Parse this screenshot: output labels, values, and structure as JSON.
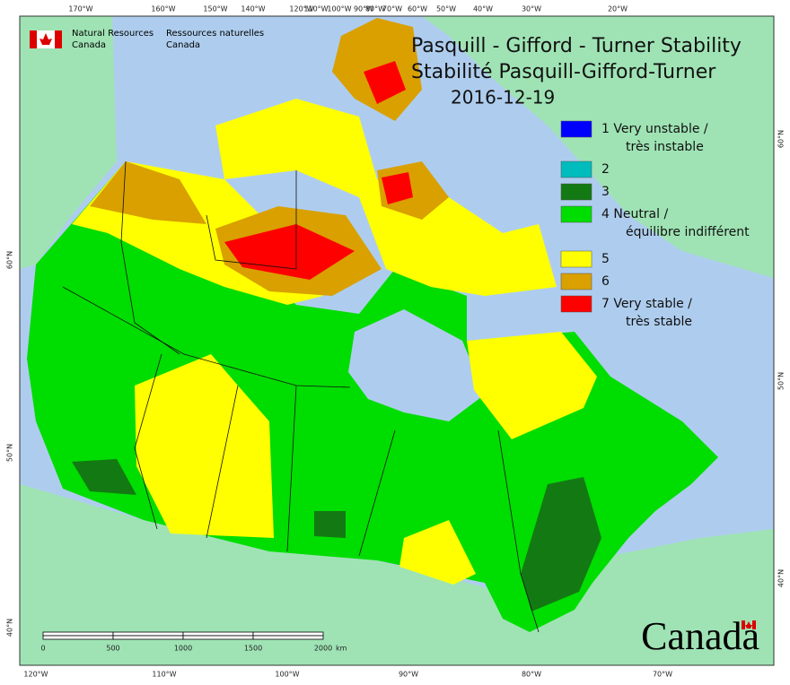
{
  "header": {
    "agency_en": [
      "Natural Resources",
      "Canada"
    ],
    "agency_fr": [
      "Ressources naturelles",
      "Canada"
    ],
    "title": "Pasquill - Gifford - Turner Stability",
    "title_fr": "Stabilité Pasquill-Gifford-Turner",
    "date": "2016-12-19"
  },
  "legend": [
    {
      "lines": [
        "1 Very unstable /",
        "très instable"
      ],
      "color": "#0000ff"
    },
    {
      "lines": [
        "2"
      ],
      "color": "#00bcbc"
    },
    {
      "lines": [
        "3"
      ],
      "color": "#137a13"
    },
    {
      "lines": [
        "4 Neutral /",
        "équilibre indifférent"
      ],
      "color": "#00dd00"
    },
    {
      "lines": [
        "5"
      ],
      "color": "#ffff00"
    },
    {
      "lines": [
        "6"
      ],
      "color": "#d9a000"
    },
    {
      "lines": [
        "7 Very stable /",
        "très stable"
      ],
      "color": "#ff0000"
    }
  ],
  "top_longitudes": [
    "170°W",
    "160°W",
    "150°W",
    "140°W",
    "120°W",
    "110°W",
    "100°W",
    "90°W",
    "80°W",
    "70°W",
    "60°W",
    "50°W",
    "40°W",
    "30°W",
    "20°W"
  ],
  "bottom_longitudes": [
    "120°W",
    "110°W",
    "100°W",
    "90°W",
    "80°W",
    "70°W"
  ],
  "left_latitudes": [
    "60°N",
    "50°N",
    "40°N"
  ],
  "right_latitudes": [
    "60°N",
    "50°N",
    "40°N"
  ],
  "scale_bar": {
    "labels": [
      "0",
      "500",
      "1000",
      "1500",
      "2000"
    ],
    "unit": "km"
  },
  "wordmark": "Canada"
}
